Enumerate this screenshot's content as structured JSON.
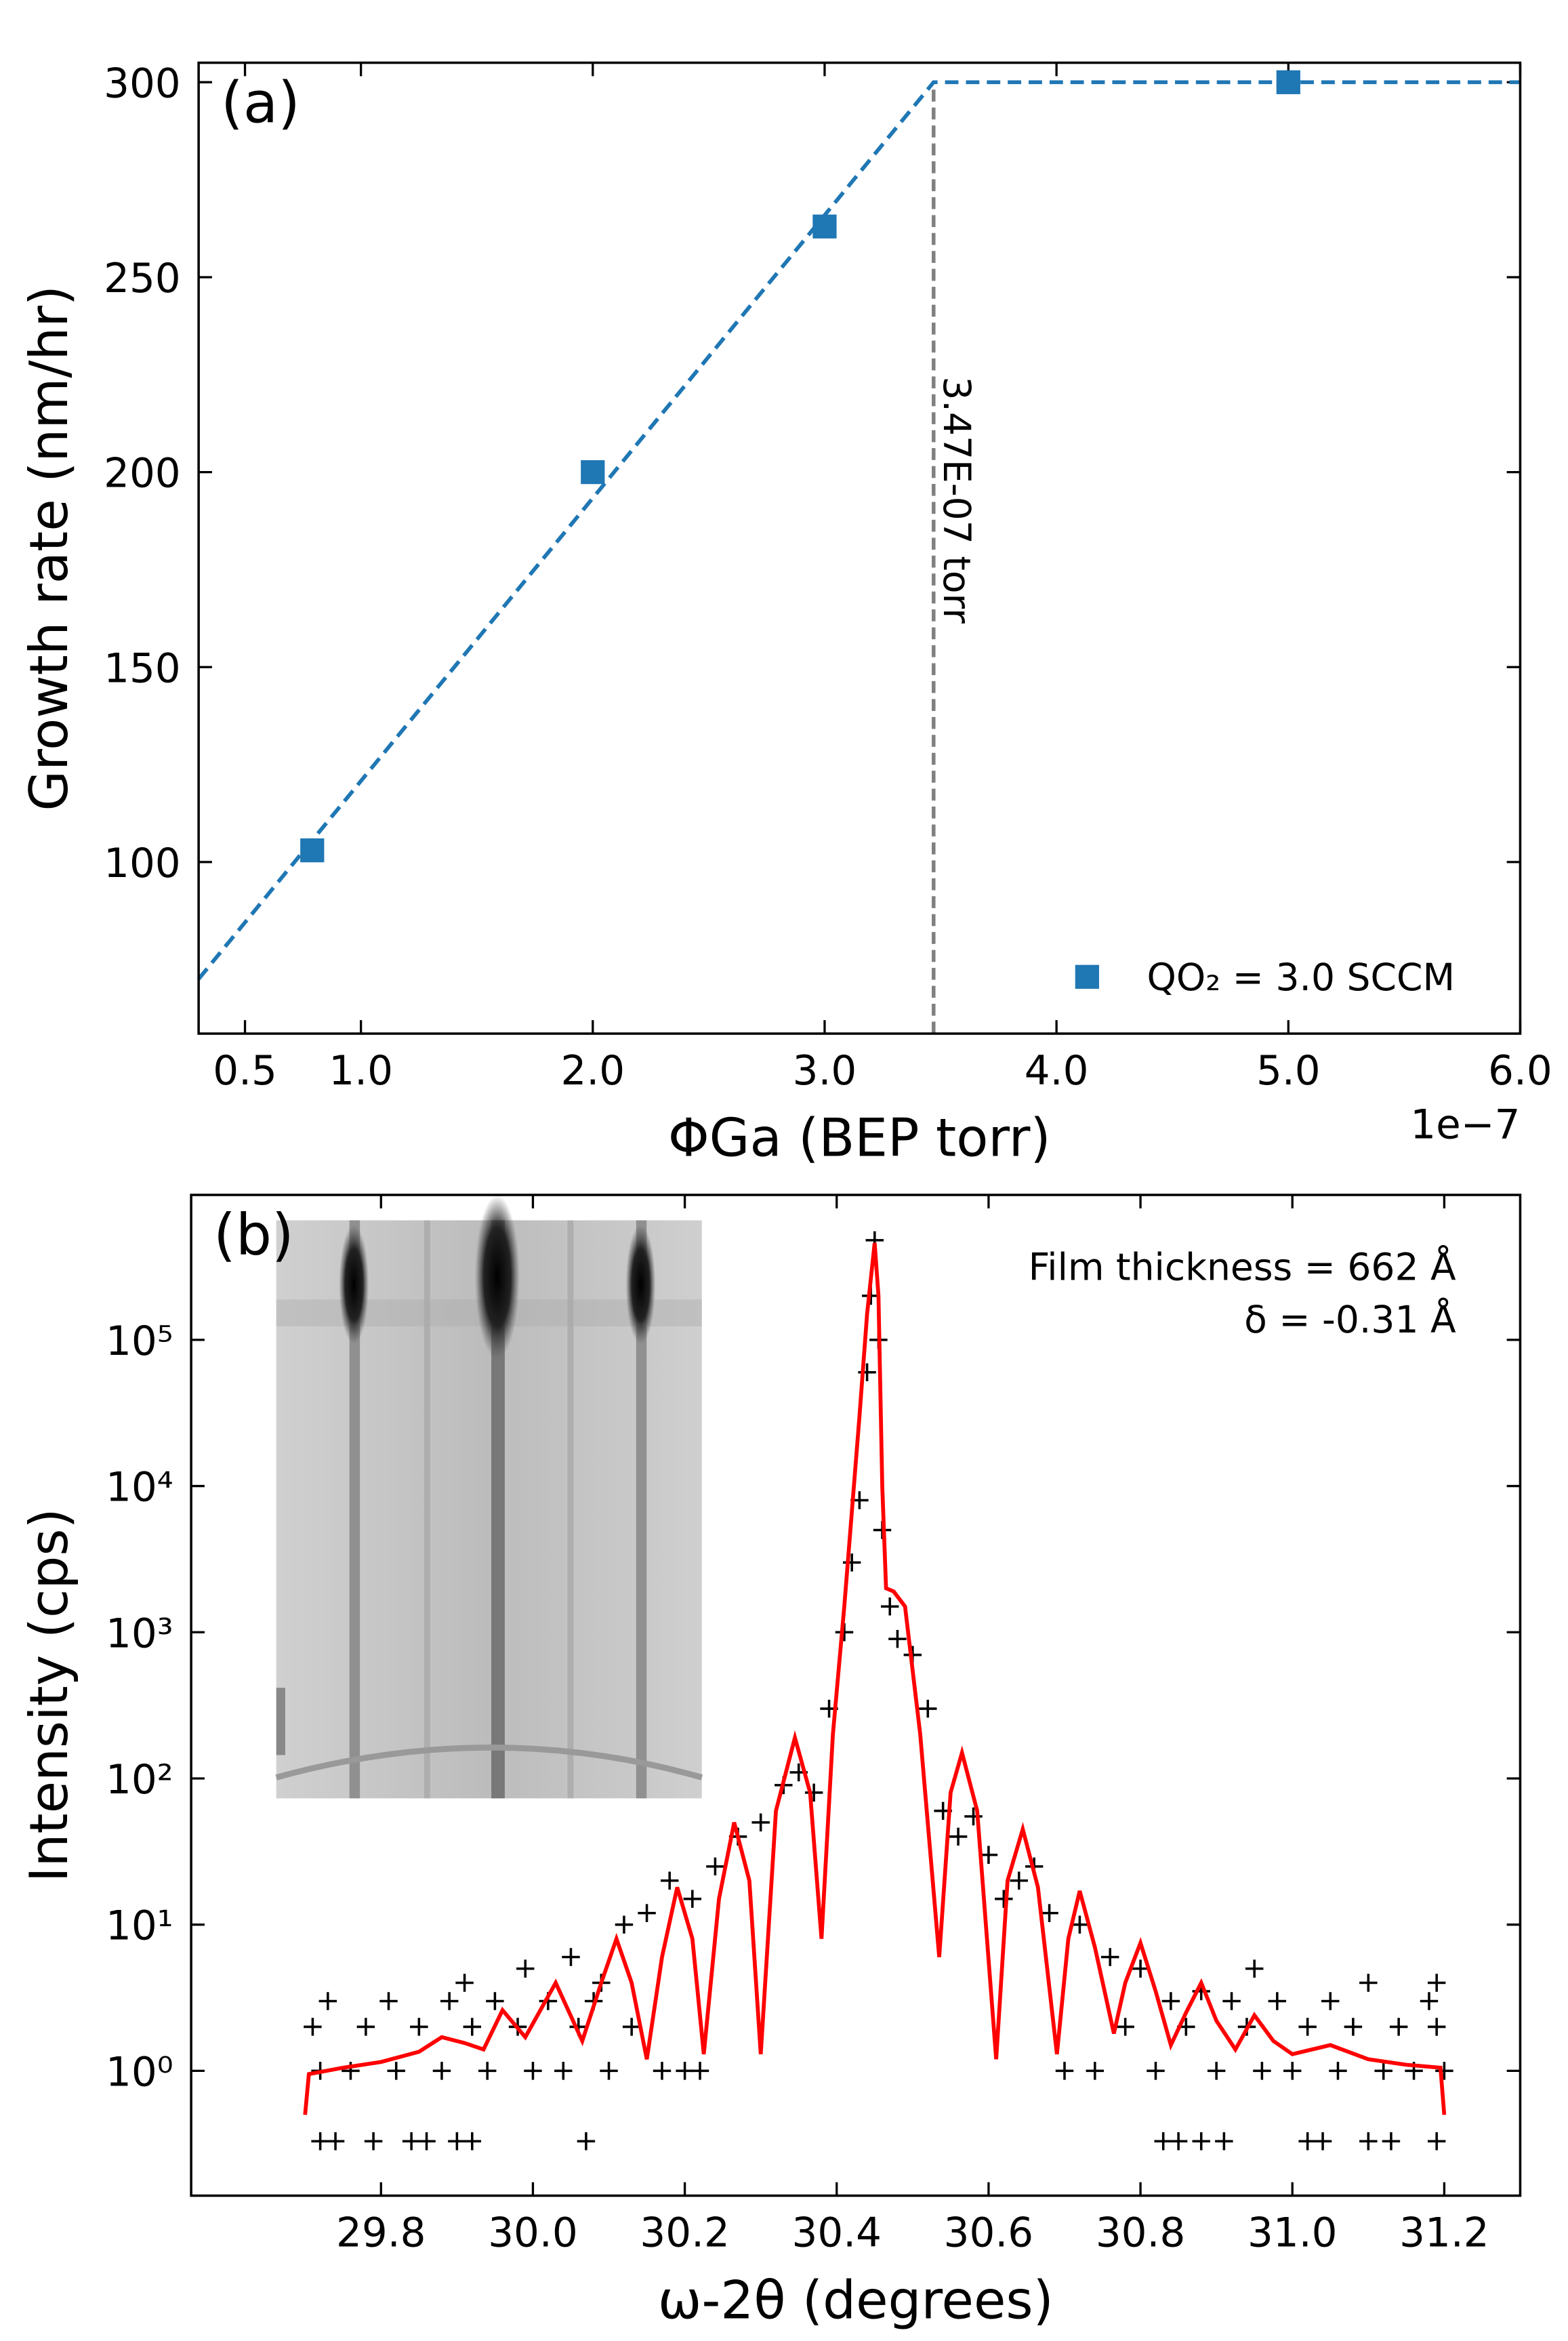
{
  "chart_data": [
    {
      "type": "scatter",
      "panel_label": "(a)",
      "xlabel": "ΦGa (BEP torr)",
      "ylabel": "Growth rate (nm/hr)",
      "offset_text": "1e−7",
      "xlim": [
        0.3,
        6.0
      ],
      "ylim": [
        56,
        305
      ],
      "xticks": [
        0.5,
        {
          "value": 1,
          "label": "1.0"
        },
        {
          "value": 2,
          "label": "2.0"
        },
        {
          "value": 3,
          "label": "3.0"
        },
        {
          "value": 4,
          "label": "4.0"
        },
        {
          "value": 5,
          "label": "5.0"
        },
        {
          "value": 6,
          "label": "6.0"
        }
      ],
      "yticks": [
        100,
        150,
        200,
        250,
        300
      ],
      "legend": "lower right",
      "series": [
        {
          "name": "QO₂ = 3.0 SCCM",
          "color": "#1f77b4",
          "marker": "square",
          "x": [
            0.79,
            2.0,
            3.0,
            5.0
          ],
          "values": [
            103,
            200,
            263,
            300
          ]
        },
        {
          "color": "#1f77b4",
          "style": "dashed",
          "x": [
            0.3,
            3.47,
            6.0
          ],
          "values": [
            70,
            300,
            300
          ]
        }
      ],
      "vline": {
        "x": 3.47,
        "color": "#808080",
        "label": "3.47E-07 torr"
      }
    },
    {
      "type": "scatter",
      "panel_label": "(b)",
      "xlabel": "ω-2θ (degrees)",
      "ylabel": "Intensity (cps)",
      "yscale": "log",
      "xlim": [
        29.55,
        31.3
      ],
      "ylim": [
        0.14,
        980000
      ],
      "xticks": [
        29.8,
        {
          "value": 30,
          "label": "30.0"
        },
        30.2,
        30.4,
        30.6,
        30.8,
        {
          "value": 31,
          "label": "31.0"
        },
        31.2
      ],
      "yticks": [
        {
          "value": 1,
          "label": "10⁰"
        },
        {
          "value": 10,
          "label": "10¹"
        },
        {
          "value": 100,
          "label": "10²"
        },
        {
          "value": 1000,
          "label": "10³"
        },
        {
          "value": 10000,
          "label": "10⁴"
        },
        {
          "value": 100000,
          "label": "10⁵"
        }
      ],
      "annotations": [
        "Film thickness = 662 Å",
        "δ = -0.31 Å"
      ],
      "series": [
        {
          "color": "#000000",
          "marker": "plus",
          "x": [
            29.72,
            29.74,
            29.79,
            29.84,
            29.86,
            29.9,
            29.92,
            30.07,
            30.83,
            30.85,
            30.88,
            30.91,
            31.02,
            31.04,
            31.1,
            31.13,
            31.19,
            29.72,
            29.76,
            29.82,
            29.88,
            29.94,
            30.0,
            30.04,
            30.1,
            30.17,
            30.2,
            30.22,
            30.7,
            30.74,
            30.82,
            30.9,
            30.96,
            31.0,
            31.06,
            31.12,
            31.16,
            31.2,
            29.71,
            29.78,
            29.85,
            29.92,
            29.98,
            30.06,
            30.13,
            30.78,
            30.86,
            30.94,
            31.02,
            31.08,
            31.14,
            31.19,
            29.73,
            29.81,
            29.89,
            29.95,
            30.02,
            30.08,
            30.84,
            30.92,
            30.98,
            31.05,
            31.18,
            29.91,
            29.99,
            30.05,
            30.09,
            31.1,
            31.19,
            30.95,
            30.12,
            30.15,
            30.18,
            30.21,
            30.24,
            30.27,
            30.3,
            30.33,
            30.35,
            30.37,
            30.39,
            30.41,
            30.42,
            30.43,
            30.44,
            30.445,
            30.45,
            30.455,
            30.46,
            30.47,
            30.48,
            30.5,
            30.52,
            30.54,
            30.56,
            30.58,
            30.6,
            30.62,
            30.64,
            30.66,
            30.68,
            30.72,
            30.76,
            30.8,
            30.88
          ],
          "values": [
            0.33,
            0.33,
            0.33,
            0.33,
            0.33,
            0.33,
            0.33,
            0.33,
            0.33,
            0.33,
            0.33,
            0.33,
            0.33,
            0.33,
            0.33,
            0.33,
            0.33,
            1,
            1,
            1,
            1,
            1,
            1,
            1,
            1,
            1,
            1,
            1,
            1,
            1,
            1,
            1,
            1,
            1,
            1,
            1,
            1,
            1,
            2,
            2,
            2,
            2,
            2,
            2,
            2,
            2,
            2,
            2,
            2,
            2,
            2,
            2,
            3,
            3,
            3,
            3,
            3,
            3,
            3,
            3,
            3,
            3,
            3,
            4,
            5,
            6,
            4,
            4,
            4,
            5,
            10,
            12,
            20,
            15,
            25,
            40,
            50,
            90,
            110,
            80,
            300,
            1000,
            3000,
            8000,
            60000,
            200000,
            480000,
            100000,
            5000,
            1500,
            900,
            700,
            300,
            60,
            40,
            55,
            30,
            15,
            20,
            25,
            12,
            10,
            6,
            5,
            3.5
          ]
        },
        {
          "color": "#ff0000",
          "x": [
            29.7,
            29.705,
            29.75,
            29.8,
            29.85,
            29.88,
            29.91,
            29.935,
            29.96,
            29.99,
            30.03,
            30.065,
            30.09,
            30.11,
            30.13,
            30.15,
            30.17,
            30.19,
            30.21,
            30.225,
            30.245,
            30.265,
            30.285,
            30.3,
            30.32,
            30.345,
            30.365,
            30.38,
            30.395,
            30.41,
            30.43,
            30.44,
            30.45,
            30.455,
            30.46,
            30.465,
            30.475,
            30.49,
            30.51,
            30.535,
            30.55,
            30.565,
            30.585,
            30.61,
            30.625,
            30.645,
            30.665,
            30.69,
            30.705,
            30.72,
            30.74,
            30.765,
            30.78,
            30.8,
            30.82,
            30.84,
            30.86,
            30.88,
            30.9,
            30.925,
            30.95,
            30.975,
            31.0,
            31.05,
            31.1,
            31.15,
            31.195,
            31.2
          ],
          "values": [
            0.5,
            0.95,
            1.05,
            1.15,
            1.35,
            1.7,
            1.55,
            1.4,
            2.6,
            1.7,
            4,
            1.6,
            4,
            8,
            4,
            1.2,
            6,
            18,
            8,
            1.3,
            15,
            50,
            20,
            1.3,
            60,
            190,
            80,
            8,
            200,
            1500,
            30000,
            150000,
            460000,
            200000,
            10000,
            2000,
            1900,
            1500,
            200,
            6,
            80,
            150,
            60,
            1.2,
            20,
            45,
            18,
            1.3,
            8,
            17,
            7,
            1.8,
            4,
            7.5,
            3.5,
            1.5,
            2.5,
            4,
            2.2,
            1.4,
            2.4,
            1.6,
            1.3,
            1.5,
            1.2,
            1.1,
            1.05,
            0.5
          ]
        }
      ]
    }
  ]
}
